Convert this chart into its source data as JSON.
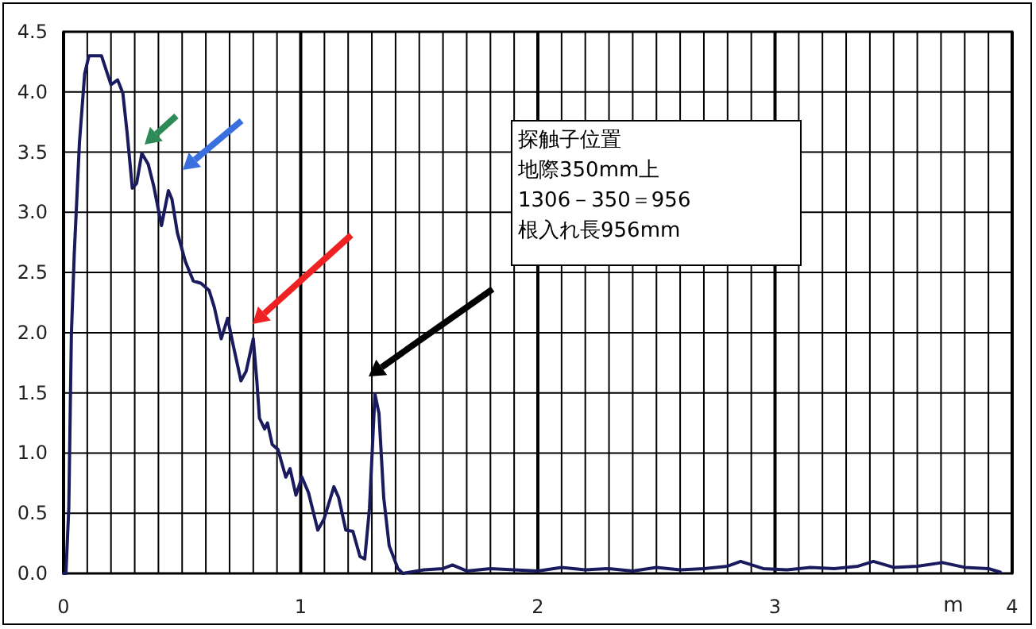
{
  "chart_data": {
    "type": "line",
    "xlabel": "m",
    "annotations": [
      "探触子位置",
      "地際350mm上",
      "1306－350＝956",
      "根入れ長956mm"
    ],
    "xlim": [
      0,
      4
    ],
    "ylim": [
      0,
      4.5
    ],
    "xticks": [
      {
        "value": 0,
        "label": "0"
      },
      {
        "value": 0.1,
        "label": null
      },
      {
        "value": 0.2,
        "label": null
      },
      {
        "value": 0.3,
        "label": null
      },
      {
        "value": 0.4,
        "label": null
      },
      {
        "value": 0.5,
        "label": null
      },
      {
        "value": 0.6,
        "label": null
      },
      {
        "value": 0.7,
        "label": null
      },
      {
        "value": 0.8,
        "label": null
      },
      {
        "value": 0.9,
        "label": null
      },
      {
        "value": 1,
        "label": "1"
      },
      {
        "value": 1.1,
        "label": null
      },
      {
        "value": 1.2,
        "label": null
      },
      {
        "value": 1.3,
        "label": null
      },
      {
        "value": 1.4,
        "label": null
      },
      {
        "value": 1.5,
        "label": null
      },
      {
        "value": 1.6,
        "label": null
      },
      {
        "value": 1.7,
        "label": null
      },
      {
        "value": 1.8,
        "label": null
      },
      {
        "value": 1.9,
        "label": null
      },
      {
        "value": 2,
        "label": "2"
      },
      {
        "value": 2.1,
        "label": null
      },
      {
        "value": 2.2,
        "label": null
      },
      {
        "value": 2.3,
        "label": null
      },
      {
        "value": 2.4,
        "label": null
      },
      {
        "value": 2.5,
        "label": null
      },
      {
        "value": 2.6,
        "label": null
      },
      {
        "value": 2.7,
        "label": null
      },
      {
        "value": 2.8,
        "label": null
      },
      {
        "value": 2.9,
        "label": null
      },
      {
        "value": 3,
        "label": "3"
      },
      {
        "value": 3.1,
        "label": null
      },
      {
        "value": 3.2,
        "label": null
      },
      {
        "value": 3.3,
        "label": null
      },
      {
        "value": 3.4,
        "label": null
      },
      {
        "value": 3.5,
        "label": null
      },
      {
        "value": 3.6,
        "label": null
      },
      {
        "value": 3.7,
        "label": null
      },
      {
        "value": 3.8,
        "label": null
      },
      {
        "value": 3.9,
        "label": null
      },
      {
        "value": 4,
        "label": "4"
      }
    ],
    "yticks": [
      {
        "value": 0,
        "label": "0.0"
      },
      {
        "value": 0.5,
        "label": "0.5"
      },
      {
        "value": 1,
        "label": "1.0"
      },
      {
        "value": 1.5,
        "label": "1.5"
      },
      {
        "value": 2,
        "label": "2.0"
      },
      {
        "value": 2.5,
        "label": "2.5"
      },
      {
        "value": 3,
        "label": "3.0"
      },
      {
        "value": 3.5,
        "label": "3.5"
      },
      {
        "value": 4,
        "label": "4.0"
      },
      {
        "value": 4.5,
        "label": "4.5"
      }
    ],
    "grid": true,
    "marker": "none",
    "line_style": "solid",
    "series": [
      {
        "color": "#1a1a5e",
        "x": [
          0,
          0.01,
          0.022,
          0.033,
          0.045,
          0.067,
          0.089,
          0.107,
          0.16,
          0.2,
          0.228,
          0.25,
          0.268,
          0.29,
          0.308,
          0.33,
          0.357,
          0.38,
          0.413,
          0.442,
          0.457,
          0.48,
          0.514,
          0.547,
          0.58,
          0.614,
          0.636,
          0.665,
          0.692,
          0.715,
          0.748,
          0.77,
          0.8,
          0.815,
          0.826,
          0.848,
          0.86,
          0.88,
          0.904,
          0.937,
          0.955,
          0.98,
          1.005,
          1.033,
          1.072,
          1.098,
          1.14,
          1.16,
          1.19,
          1.22,
          1.25,
          1.27,
          1.29,
          1.313,
          1.33,
          1.35,
          1.373,
          1.41,
          1.43,
          1.52,
          1.6,
          1.64,
          1.7,
          1.8,
          1.9,
          2.0,
          2.1,
          2.2,
          2.3,
          2.4,
          2.5,
          2.6,
          2.7,
          2.8,
          2.855,
          2.95,
          3.05,
          3.15,
          3.25,
          3.35,
          3.415,
          3.5,
          3.6,
          3.706,
          3.8,
          3.9,
          3.95
        ],
        "values": [
          0,
          0,
          0.54,
          1.99,
          2.65,
          3.58,
          4.15,
          4.3,
          4.3,
          4.06,
          4.1,
          3.99,
          3.66,
          3.2,
          3.24,
          3.49,
          3.4,
          3.22,
          2.89,
          3.18,
          3.11,
          2.83,
          2.59,
          2.43,
          2.41,
          2.35,
          2.21,
          1.95,
          2.12,
          1.9,
          1.6,
          1.68,
          1.95,
          1.6,
          1.29,
          1.2,
          1.25,
          1.07,
          1.03,
          0.8,
          0.87,
          0.65,
          0.8,
          0.67,
          0.36,
          0.45,
          0.72,
          0.63,
          0.36,
          0.35,
          0.14,
          0.12,
          0.54,
          1.49,
          1.33,
          0.63,
          0.23,
          0.04,
          0,
          0.03,
          0.04,
          0.07,
          0.02,
          0.04,
          0.03,
          0.02,
          0.05,
          0.03,
          0.04,
          0.02,
          0.05,
          0.03,
          0.04,
          0.06,
          0.1,
          0.04,
          0.03,
          0.05,
          0.04,
          0.06,
          0.1,
          0.05,
          0.06,
          0.09,
          0.05,
          0.04,
          0.01
        ]
      }
    ]
  }
}
